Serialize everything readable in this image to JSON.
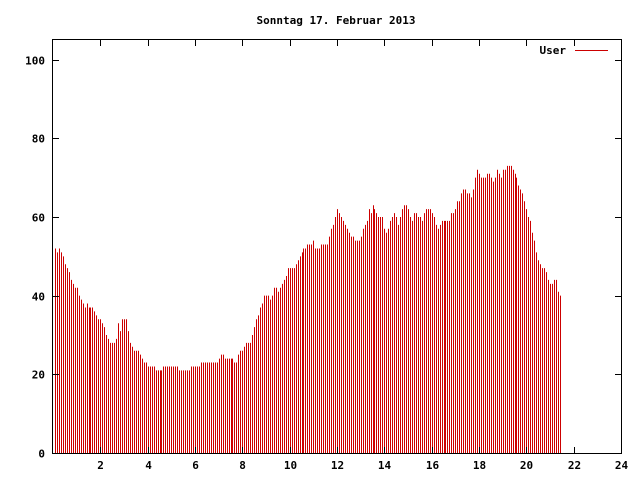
{
  "chart_data": {
    "type": "bar",
    "title": "Sonntag 17. Februar 2013",
    "xlabel": "",
    "ylabel": "",
    "xlim": [
      0,
      24
    ],
    "ylim": [
      0,
      105
    ],
    "x_ticks": [
      "2",
      "4",
      "6",
      "8",
      "10",
      "12",
      "14",
      "16",
      "18",
      "20",
      "22",
      "24"
    ],
    "y_ticks": [
      "0",
      "20",
      "40",
      "60",
      "80",
      "100"
    ],
    "grid": false,
    "legend_position": "top-right",
    "bar_color": "#cc0000",
    "series": [
      {
        "name": "User",
        "samples_per_hour": 12,
        "values": [
          52,
          51,
          52,
          51,
          50,
          48,
          47,
          46,
          44,
          43,
          42,
          42,
          40,
          39,
          38,
          37,
          38,
          37,
          37,
          37,
          36,
          35,
          34,
          34,
          33,
          32,
          30,
          29,
          28,
          28,
          28,
          29,
          33,
          31,
          34,
          34,
          34,
          31,
          28,
          27,
          26,
          26,
          26,
          25,
          24,
          23,
          23,
          22,
          22,
          22,
          22,
          21,
          21,
          21,
          21,
          22,
          22,
          22,
          22,
          22,
          22,
          22,
          22,
          21,
          21,
          21,
          21,
          21,
          21,
          22,
          22,
          22,
          22,
          22,
          23,
          23,
          23,
          23,
          23,
          23,
          23,
          23,
          23,
          24,
          25,
          25,
          24,
          24,
          24,
          24,
          24,
          23,
          23,
          25,
          26,
          26,
          27,
          28,
          28,
          28,
          30,
          32,
          34,
          35,
          37,
          38,
          40,
          40,
          40,
          39,
          40,
          42,
          42,
          41,
          42,
          43,
          44,
          45,
          47,
          47,
          47,
          47,
          48,
          49,
          50,
          51,
          52,
          52,
          53,
          53,
          53,
          54,
          52,
          52,
          52,
          53,
          53,
          53,
          53,
          55,
          57,
          58,
          60,
          62,
          61,
          60,
          59,
          58,
          57,
          56,
          55,
          55,
          54,
          54,
          54,
          55,
          57,
          58,
          59,
          62,
          61,
          63,
          62,
          61,
          60,
          60,
          60,
          57,
          56,
          57,
          59,
          60,
          61,
          60,
          58,
          60,
          62,
          63,
          63,
          62,
          60,
          59,
          61,
          61,
          60,
          60,
          59,
          61,
          62,
          62,
          62,
          61,
          60,
          58,
          57,
          58,
          59,
          59,
          59,
          59,
          59,
          61,
          61,
          62,
          64,
          64,
          66,
          67,
          67,
          66,
          66,
          65,
          67,
          70,
          72,
          71,
          70,
          70,
          70,
          71,
          71,
          70,
          69,
          70,
          72,
          71,
          70,
          72,
          72,
          73,
          73,
          73,
          72,
          71,
          70,
          68,
          67,
          66,
          64,
          62,
          60,
          59,
          56,
          54,
          51,
          49,
          48,
          47,
          47,
          46,
          44,
          43,
          43,
          44,
          44,
          41,
          40
        ]
      }
    ]
  }
}
